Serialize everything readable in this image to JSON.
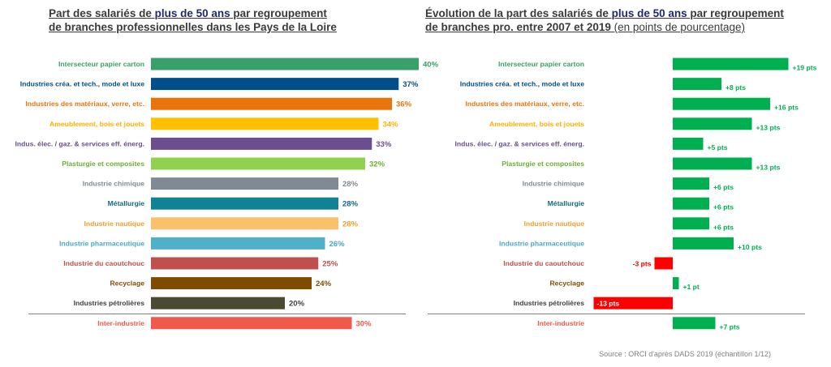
{
  "titles": {
    "left": {
      "part1": "Part des salariés de ",
      "highlight": "plus de 50 ans",
      "part2": " par regroupement",
      "line2": "de branches professionnelles dans les Pays de la Loire"
    },
    "right": {
      "part1": "Évolution de la part des salariés de ",
      "highlight": "plus de 50 ans",
      "part2": " par regroupement",
      "line2": "de branches pro.  entre 2007 et 2019 ",
      "paren": "(en points de pourcentage)"
    }
  },
  "source": "Source : ORCI d'après DADS 2019 (échantillon 1/12)",
  "colors": {
    "positive": "#00b050",
    "negative": "#ff0000",
    "separator": "#7f7f7f"
  },
  "chart_data": [
    {
      "type": "bar",
      "orientation": "horizontal",
      "unit": "%",
      "categories": [
        "Intersecteur papier carton",
        "Industries créa. et tech., mode et luxe",
        "Industries des matériaux, verre, etc.",
        "Ameublement, bois et jouets",
        "Indus. élec. / gaz. & services eff. énerg.",
        "Plasturgie et composites",
        "Industrie chimique",
        "Métallurgie",
        "Industrie nautique",
        "Industrie pharmaceutique",
        "Industrie du caoutchouc",
        "Recyclage",
        "Industries pétrolières",
        "Inter-industrie"
      ],
      "values": [
        40,
        37,
        36,
        34,
        33,
        32,
        28,
        28,
        28,
        26,
        25,
        24,
        20,
        30
      ],
      "value_labels": [
        "40%",
        "37%",
        "36%",
        "34%",
        "33%",
        "32%",
        "28%",
        "28%",
        "28%",
        "26%",
        "25%",
        "24%",
        "20%",
        "30%"
      ],
      "bar_colors": [
        "#3aa06a",
        "#004f8a",
        "#e8740c",
        "#ffc000",
        "#6b4e8e",
        "#92d050",
        "#808a94",
        "#0f8296",
        "#fac06a",
        "#4fb0c8",
        "#c0504d",
        "#7f4b00",
        "#4a4a32",
        "#f05a4a"
      ],
      "label_colors": [
        "#3aa06a",
        "#004f8a",
        "#e8740c",
        "#ffb000",
        "#6b4e8e",
        "#6bae30",
        "#808a94",
        "#0f6a80",
        "#f0a030",
        "#4aa8c8",
        "#c0504d",
        "#7f4b00",
        "#404040",
        "#f05a4a"
      ]
    },
    {
      "type": "bar",
      "orientation": "horizontal",
      "unit": "pts",
      "categories": [
        "Intersecteur papier carton",
        "Industries créa. et tech., mode et luxe",
        "Industries des matériaux, verre, etc.",
        "Ameublement, bois et jouets",
        "Indus. élec. / gaz. & services eff. énerg.",
        "Plasturgie et composites",
        "Industrie chimique",
        "Métallurgie",
        "Industrie nautique",
        "Industrie pharmaceutique",
        "Industrie du caoutchouc",
        "Recyclage",
        "Industries pétrolières",
        "Inter-industrie"
      ],
      "values": [
        19,
        8,
        16,
        13,
        5,
        13,
        6,
        6,
        6,
        10,
        -3,
        1,
        -13,
        7
      ],
      "value_labels": [
        "+19 pts",
        "+8 pts",
        "+16 pts",
        "+13 pts",
        "+5 pts",
        "+13 pts",
        "+6 pts",
        "+6 pts",
        "+6 pts",
        "+10 pts",
        "-3 pts",
        "+1 pt",
        "-13 pts",
        "+7 pts"
      ]
    }
  ]
}
